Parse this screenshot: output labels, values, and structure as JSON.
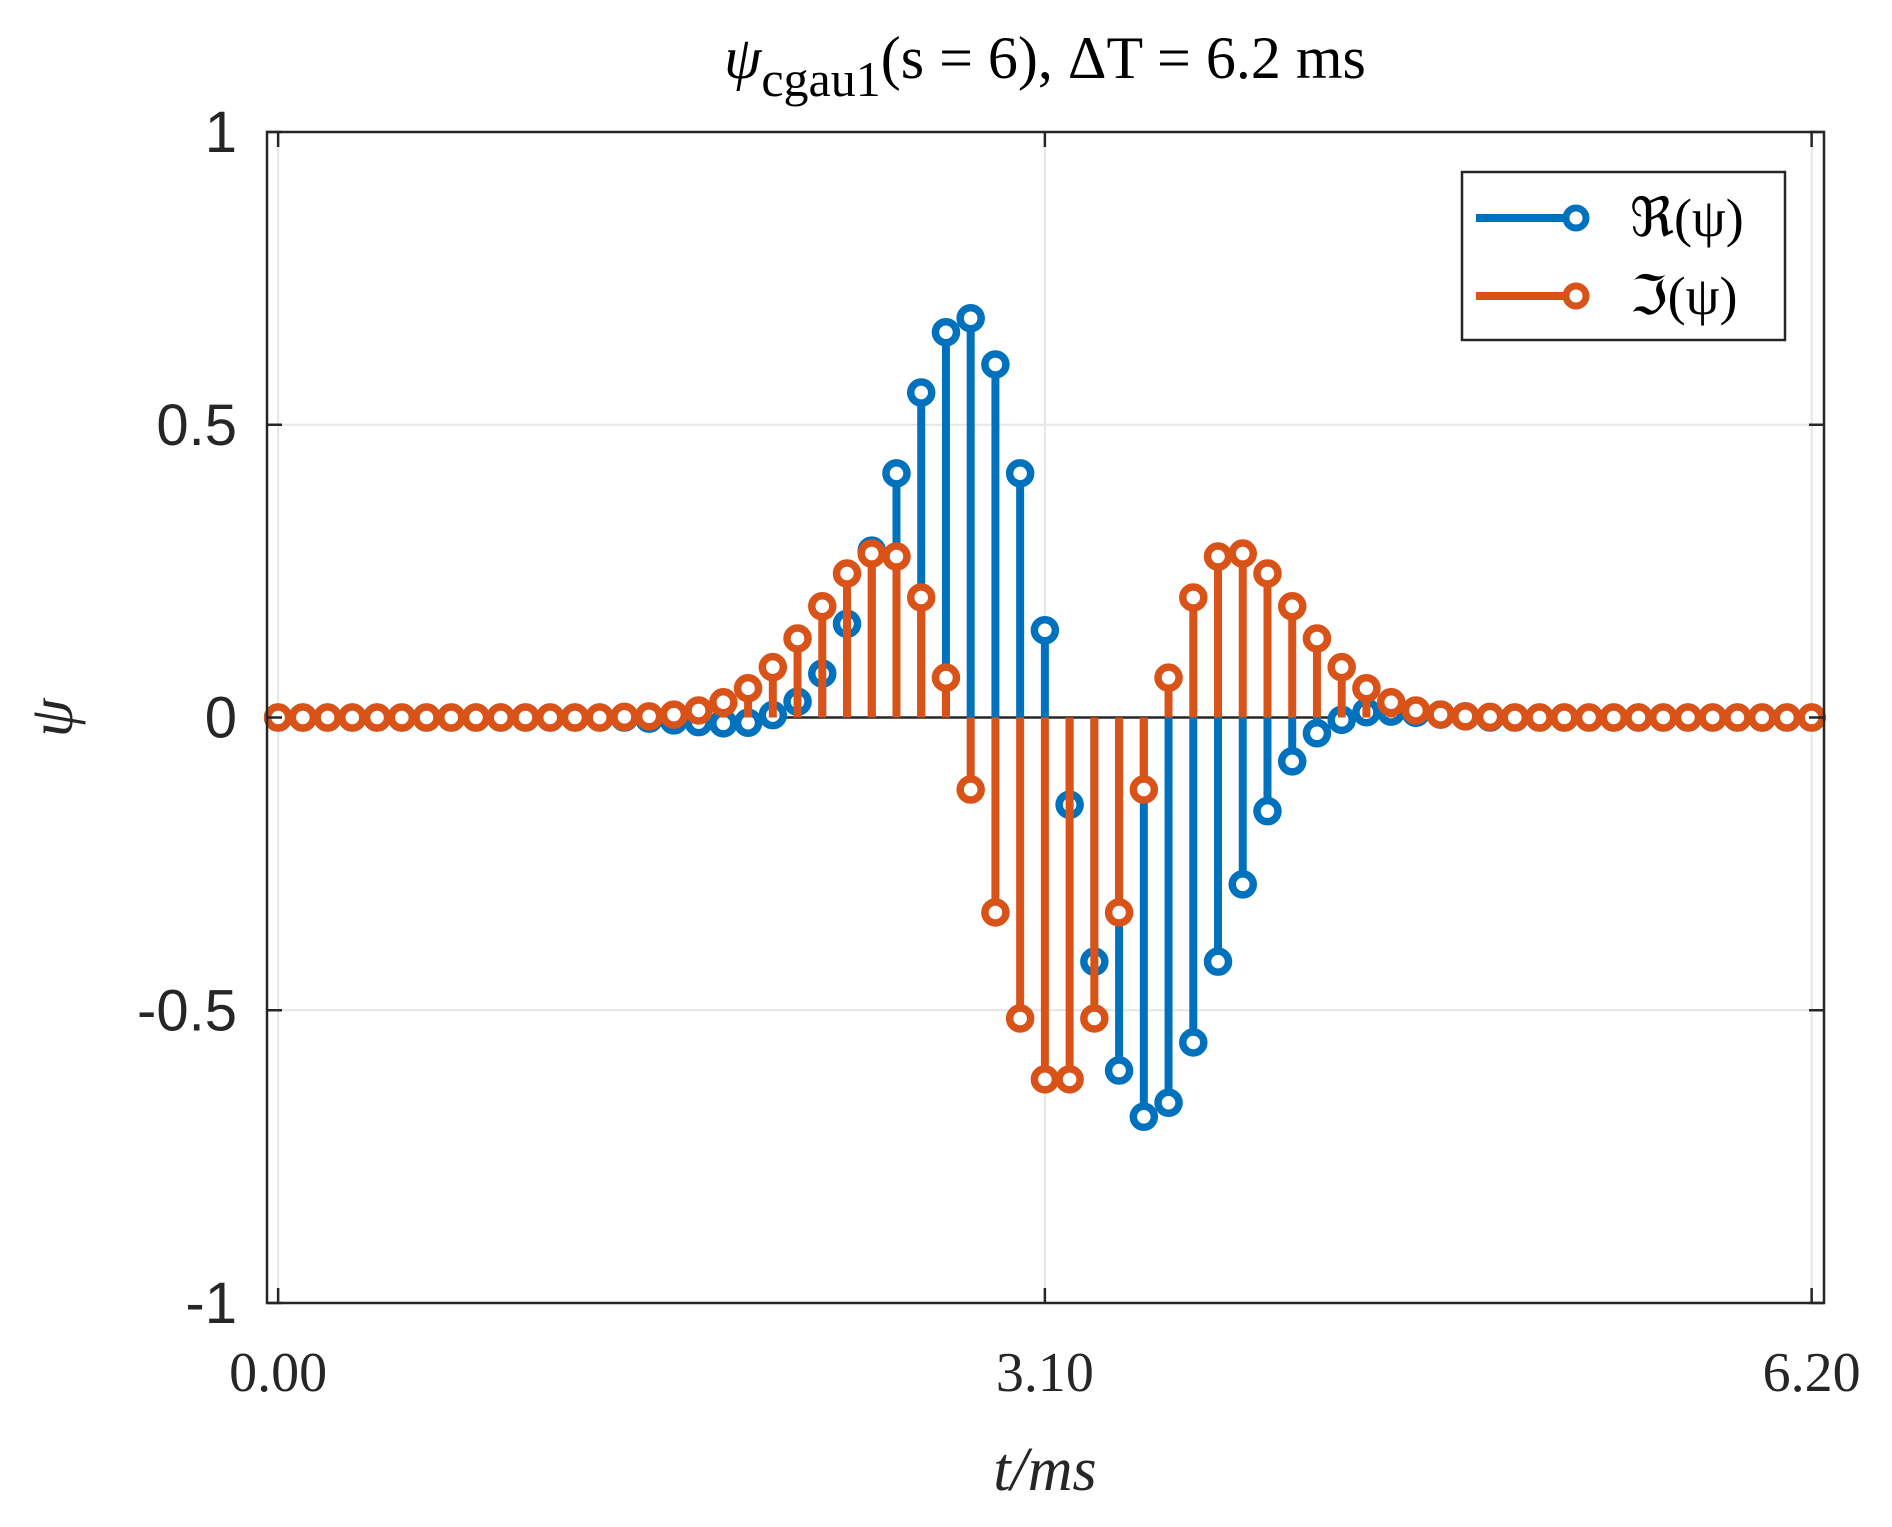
{
  "chart_data": {
    "type": "stem",
    "title": {
      "symbol": "ψ",
      "subscript": "cgau1",
      "rest": "(s = 6), ΔT = 6.2 ms"
    },
    "xlabel": "t/ms",
    "ylabel": "ψ",
    "xlim": [
      -0.045,
      6.25
    ],
    "ylim": [
      -1,
      1
    ],
    "xticks": [
      0.0,
      3.1,
      6.2
    ],
    "xtick_labels": [
      "0.00",
      "3.10",
      "6.20"
    ],
    "yticks": [
      1,
      0.5,
      0,
      -0.5,
      -1
    ],
    "ytick_labels": [
      "1",
      "0.5",
      "0",
      "-0.5",
      "-1"
    ],
    "grid": true,
    "legend": {
      "placement": "top-right",
      "entries": [
        "ℜ(ψ)",
        "ℑ(ψ)"
      ]
    },
    "x": [
      0.0,
      0.1,
      0.2,
      0.3,
      0.4,
      0.5,
      0.6,
      0.7,
      0.8,
      0.9,
      1.0,
      1.1,
      1.2,
      1.3,
      1.4,
      1.5,
      1.6,
      1.7,
      1.8,
      1.9,
      2.0,
      2.1,
      2.2,
      2.3,
      2.4,
      2.5,
      2.6,
      2.7,
      2.8,
      2.9,
      3.0,
      3.1,
      3.2,
      3.3,
      3.4,
      3.5,
      3.6,
      3.7,
      3.8,
      3.9,
      4.0,
      4.1,
      4.2,
      4.3,
      4.4,
      4.5,
      4.6,
      4.7,
      4.8,
      4.9,
      5.0,
      5.1,
      5.2,
      5.3,
      5.4,
      5.5,
      5.6,
      5.7,
      5.8,
      5.9,
      6.0,
      6.1,
      6.2
    ],
    "series": [
      {
        "name": "ℜ(ψ)",
        "color": "#0072BD",
        "values": [
          0,
          0,
          0,
          0,
          0,
          0,
          0,
          0,
          0,
          0,
          0,
          0,
          0,
          0,
          0,
          -0.002,
          -0.005,
          -0.008,
          -0.01,
          -0.009,
          0.004,
          0.027,
          0.075,
          0.16,
          0.285,
          0.417,
          0.555,
          0.658,
          0.682,
          0.603,
          0.417,
          0.149,
          -0.149,
          -0.417,
          -0.603,
          -0.682,
          -0.658,
          -0.555,
          -0.417,
          -0.285,
          -0.16,
          -0.075,
          -0.027,
          -0.004,
          0.009,
          0.01,
          0.008,
          0.005,
          0.002,
          0,
          0,
          0,
          0,
          0,
          0,
          0,
          0,
          0,
          0,
          0,
          0,
          0,
          0
        ]
      },
      {
        "name": "ℑ(ψ)",
        "color": "#D95319",
        "values": [
          0,
          0,
          0,
          0,
          0,
          0,
          0,
          0,
          0,
          0,
          0,
          0,
          0,
          0,
          0.001,
          0.002,
          0.005,
          0.012,
          0.026,
          0.05,
          0.086,
          0.135,
          0.19,
          0.246,
          0.28,
          0.275,
          0.205,
          0.068,
          -0.123,
          -0.333,
          -0.514,
          -0.618,
          -0.618,
          -0.514,
          -0.333,
          -0.123,
          0.068,
          0.205,
          0.275,
          0.28,
          0.246,
          0.19,
          0.135,
          0.086,
          0.05,
          0.026,
          0.012,
          0.005,
          0.002,
          0.001,
          0,
          0,
          0,
          0,
          0,
          0,
          0,
          0,
          0,
          0,
          0,
          0,
          0
        ]
      }
    ]
  }
}
